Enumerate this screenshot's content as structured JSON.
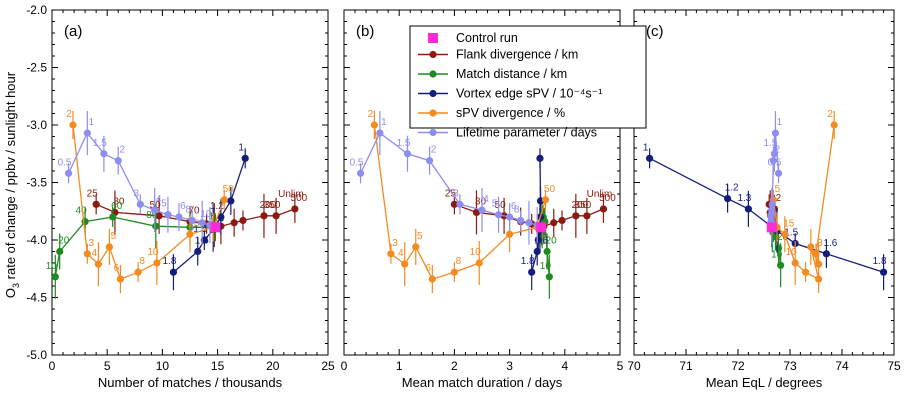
{
  "ylabel_main": "O",
  "ylabel_sub": "3",
  "ylabel_rest": " rate of change / ppbv / sunlight hour",
  "ylim": [
    -5.0,
    -2.0
  ],
  "yticks": [
    "-2.0",
    "-2.5",
    "-3.0",
    "-3.5",
    "-4.0",
    "-4.5",
    "-5.0"
  ],
  "legend": {
    "control": "Control run",
    "items": [
      {
        "name": "Flank divergence / km",
        "color": "#8b1a10"
      },
      {
        "name": "Match distance / km",
        "color": "#1f8a1f"
      },
      {
        "name": "Vortex edge sPV / 10⁻⁴s⁻¹",
        "color": "#141e7a"
      },
      {
        "name": "sPV divergence / %",
        "color": "#f58a1f"
      },
      {
        "name": "Lifetime parameter / days",
        "color": "#8e8ef0"
      }
    ],
    "control_color": "#ff2bd6"
  },
  "chart_data": [
    {
      "type": "line",
      "panel_label": "(a)",
      "xlabel": "Number of matches / thousands",
      "xlim": [
        0,
        25
      ],
      "xticks": [
        "0",
        "5",
        "10",
        "15",
        "20",
        "25"
      ],
      "control": {
        "x": 14.8,
        "y": -3.89
      },
      "series": [
        {
          "name": "Flank divergence / km",
          "x": [
            4.0,
            5.7,
            9.7,
            12.5,
            14.0,
            14.7,
            15.3,
            16.5,
            17.3,
            19.2,
            20.3,
            22.0
          ],
          "y": [
            -3.69,
            -3.76,
            -3.79,
            -3.84,
            -3.86,
            -3.87,
            -3.88,
            -3.85,
            -3.83,
            -3.79,
            -3.79,
            -3.73
          ],
          "labels": [
            "25",
            "30",
            "50",
            "70",
            "",
            "",
            "",
            "",
            "",
            "200",
            "350",
            "500"
          ],
          "end_label": "Unlim"
        },
        {
          "name": "Match distance / km",
          "x": [
            0.3,
            0.7,
            3.0,
            5.5,
            9.4,
            12.5,
            14.8
          ],
          "y": [
            -4.32,
            -4.1,
            -3.84,
            -3.8,
            -3.88,
            -3.89,
            -3.89
          ],
          "labels": [
            "10",
            "20",
            "40",
            "60",
            "80",
            "",
            "1"
          ]
        },
        {
          "name": "Vortex edge sPV / 10⁻⁴s⁻¹",
          "x": [
            11.0,
            13.2,
            13.8,
            14.6,
            15.3,
            16.2,
            17.5
          ],
          "y": [
            -4.28,
            -4.1,
            -4.0,
            -3.91,
            -3.8,
            -3.66,
            -3.29
          ],
          "labels": [
            "1.8",
            "1.6",
            "1.5",
            "1.3",
            "1.2",
            "",
            "1"
          ]
        },
        {
          "name": "sPV divergence / %",
          "x": [
            1.9,
            3.2,
            4.2,
            5.2,
            6.2,
            7.8,
            9.5,
            12.5,
            14.6,
            15.6
          ],
          "y": [
            -3.0,
            -4.12,
            -4.21,
            -4.06,
            -4.34,
            -4.28,
            -4.2,
            -3.95,
            -3.89,
            -3.65
          ],
          "labels": [
            "2",
            "3",
            "4",
            "5",
            "6",
            "8",
            "10",
            "20",
            "",
            "50"
          ]
        },
        {
          "name": "Lifetime parameter / days",
          "x": [
            1.5,
            3.2,
            4.7,
            6.0,
            8.0,
            9.3,
            10.5,
            11.5,
            12.7,
            13.6,
            14.3
          ],
          "y": [
            -3.42,
            -3.07,
            -3.25,
            -3.31,
            -3.69,
            -3.74,
            -3.78,
            -3.8,
            -3.83,
            -3.85,
            -3.87
          ],
          "labels": [
            "0.5",
            "1",
            "1.5",
            "2",
            "3",
            "4",
            "5",
            "6",
            "8",
            "",
            "10"
          ]
        }
      ]
    },
    {
      "type": "line",
      "panel_label": "(b)",
      "xlabel": "Mean match duration / days",
      "xlim": [
        0,
        5
      ],
      "xticks": [
        "0",
        "1",
        "2",
        "3",
        "4",
        "5"
      ],
      "control": {
        "x": 3.57,
        "y": -3.89
      },
      "series": [
        {
          "name": "Flank divergence / km",
          "x": [
            2.0,
            2.4,
            2.9,
            3.2,
            3.4,
            3.55,
            3.62,
            3.8,
            3.95,
            4.2,
            4.4,
            4.7
          ],
          "y": [
            -3.69,
            -3.76,
            -3.79,
            -3.84,
            -3.86,
            -3.87,
            -3.88,
            -3.85,
            -3.83,
            -3.79,
            -3.79,
            -3.73
          ],
          "labels": [
            "25",
            "30",
            "50",
            "",
            "",
            "",
            "",
            "",
            "",
            "200",
            "350",
            "500"
          ],
          "end_label": "Unlim"
        },
        {
          "name": "Match distance / km",
          "x": [
            3.72,
            3.68,
            3.64,
            3.61,
            3.59,
            3.58,
            3.57
          ],
          "y": [
            -4.32,
            -4.1,
            -3.84,
            -3.8,
            -3.88,
            -3.89,
            -3.89
          ],
          "labels": [
            "10",
            "20",
            "",
            "",
            "",
            "",
            ""
          ]
        },
        {
          "name": "Vortex edge sPV / 10⁻⁴s⁻¹",
          "x": [
            3.4,
            3.5,
            3.52,
            3.55,
            3.56,
            3.56,
            3.55
          ],
          "y": [
            -4.28,
            -4.1,
            -4.0,
            -3.91,
            -3.8,
            -3.66,
            -3.29
          ],
          "labels": [
            "1.8",
            "1.6",
            "",
            "",
            "",
            "",
            ""
          ]
        },
        {
          "name": "sPV divergence / %",
          "x": [
            0.55,
            0.85,
            1.1,
            1.3,
            1.6,
            2.0,
            2.45,
            3.0,
            3.5,
            3.65
          ],
          "y": [
            -3.0,
            -4.12,
            -4.21,
            -4.06,
            -4.34,
            -4.28,
            -4.2,
            -3.95,
            -3.89,
            -3.65
          ],
          "labels": [
            "2",
            "3",
            "4",
            "5",
            "6",
            "8",
            "10",
            "",
            "",
            "50"
          ]
        },
        {
          "name": "Lifetime parameter / days",
          "x": [
            0.3,
            0.65,
            1.15,
            1.55,
            2.1,
            2.5,
            2.8,
            3.0,
            3.2,
            3.35,
            3.5
          ],
          "y": [
            -3.42,
            -3.07,
            -3.25,
            -3.31,
            -3.69,
            -3.74,
            -3.78,
            -3.8,
            -3.83,
            -3.85,
            -3.87
          ],
          "labels": [
            "0.5",
            "1",
            "1.5",
            "2",
            "3",
            "4",
            "5",
            "6",
            "8",
            "",
            ""
          ]
        }
      ]
    },
    {
      "type": "line",
      "panel_label": "(c)",
      "xlabel": "Mean EqL / degrees",
      "xlim": [
        70,
        75
      ],
      "xticks": [
        "70",
        "71",
        "72",
        "73",
        "74",
        "75"
      ],
      "control": {
        "x": 72.65,
        "y": -3.89
      },
      "series": [
        {
          "name": "Flank divergence / km",
          "x": [
            72.6,
            72.62,
            72.63,
            72.64,
            72.64,
            72.65,
            72.65,
            72.66,
            72.66,
            72.67,
            72.68,
            72.7
          ],
          "y": [
            -3.69,
            -3.76,
            -3.79,
            -3.84,
            -3.86,
            -3.87,
            -3.88,
            -3.85,
            -3.83,
            -3.79,
            -3.79,
            -3.73
          ],
          "labels": [
            "",
            "",
            "",
            "",
            "",
            "",
            "",
            "",
            "",
            "",
            "",
            "2"
          ]
        },
        {
          "name": "Match distance / km",
          "x": [
            72.82,
            72.78,
            72.72,
            72.68,
            72.66,
            72.65,
            72.65
          ],
          "y": [
            -4.22,
            -4.07,
            -3.97,
            -3.93,
            -3.91,
            -3.9,
            -3.89
          ],
          "labels": [
            "10",
            "20",
            "",
            "",
            "",
            "",
            ""
          ]
        },
        {
          "name": "Vortex edge sPV / 10⁻⁴s⁻¹",
          "x": [
            74.8,
            73.7,
            73.1,
            72.75,
            72.2,
            71.8,
            70.3
          ],
          "y": [
            -4.28,
            -4.12,
            -4.03,
            -3.92,
            -3.73,
            -3.64,
            -3.29
          ],
          "labels": [
            "1.8",
            "1.6",
            "1.5",
            "",
            "1.3",
            "1.2",
            "1"
          ]
        },
        {
          "name": "sPV divergence / %",
          "x": [
            73.85,
            73.5,
            73.55,
            73.4,
            73.55,
            73.3,
            73.1,
            72.9,
            72.75,
            72.68
          ],
          "y": [
            -3.0,
            -4.12,
            -4.21,
            -4.06,
            -4.34,
            -4.28,
            -4.2,
            -3.95,
            -3.89,
            -3.65
          ],
          "labels": [
            "2",
            "3",
            "4",
            "",
            "",
            "",
            "10",
            "15",
            "",
            "5"
          ]
        },
        {
          "name": "Lifetime parameter / days",
          "x": [
            72.78,
            72.72,
            72.7,
            72.68,
            72.66,
            72.65,
            72.64,
            72.64,
            72.64,
            72.65,
            72.65
          ],
          "y": [
            -3.42,
            -3.07,
            -3.25,
            -3.31,
            -3.69,
            -3.74,
            -3.78,
            -3.8,
            -3.83,
            -3.85,
            -3.87
          ],
          "labels": [
            "0.5",
            "1",
            "1.5",
            "2",
            "",
            "",
            "",
            "",
            "",
            "",
            ""
          ]
        }
      ]
    }
  ]
}
